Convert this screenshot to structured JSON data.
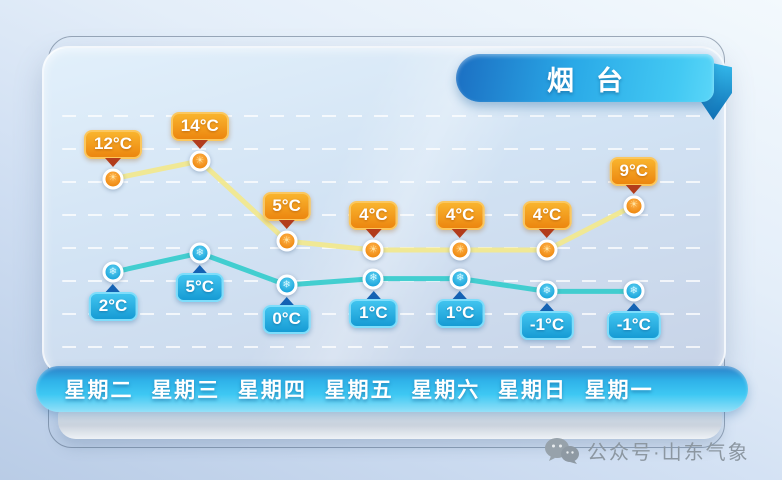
{
  "header": {
    "title": "烟台"
  },
  "chart_data": {
    "type": "line",
    "title": "烟台",
    "categories": [
      "星期二",
      "星期三",
      "星期四",
      "星期五",
      "星期六",
      "星期日",
      "星期一"
    ],
    "unit": "°C",
    "series": [
      {
        "name": "high",
        "values": [
          12,
          14,
          5,
          4,
          4,
          4,
          9
        ],
        "line_color": "#f1e88f",
        "point_color": "#f08c14",
        "label_color": "#f19b1a",
        "pointer_color": "#b23c1c"
      },
      {
        "name": "low",
        "values": [
          2,
          5,
          0,
          1,
          1,
          -1,
          -1
        ],
        "line_color": "#3accce",
        "point_color": "#27aee2",
        "label_color": "#2bb3e6",
        "pointer_color": "#1563b4"
      }
    ],
    "grid": "dashed-horizontal",
    "legend": "none"
  },
  "footer": {
    "watermark": "公众号·山东气象"
  },
  "icons": {
    "wechat-icon": "two overlapping chat bubbles",
    "sun-icon": "☀",
    "snowflake-icon": "❄"
  },
  "colors": {
    "ribbon_start": "#1b6ec2",
    "ribbon_end": "#5bd6f8",
    "day_bar_top": "#2c7fc7",
    "day_bar_bottom": "#93e0f8",
    "watermark_text": "#8c97a1",
    "panel_bg": "#d2e3f4"
  }
}
